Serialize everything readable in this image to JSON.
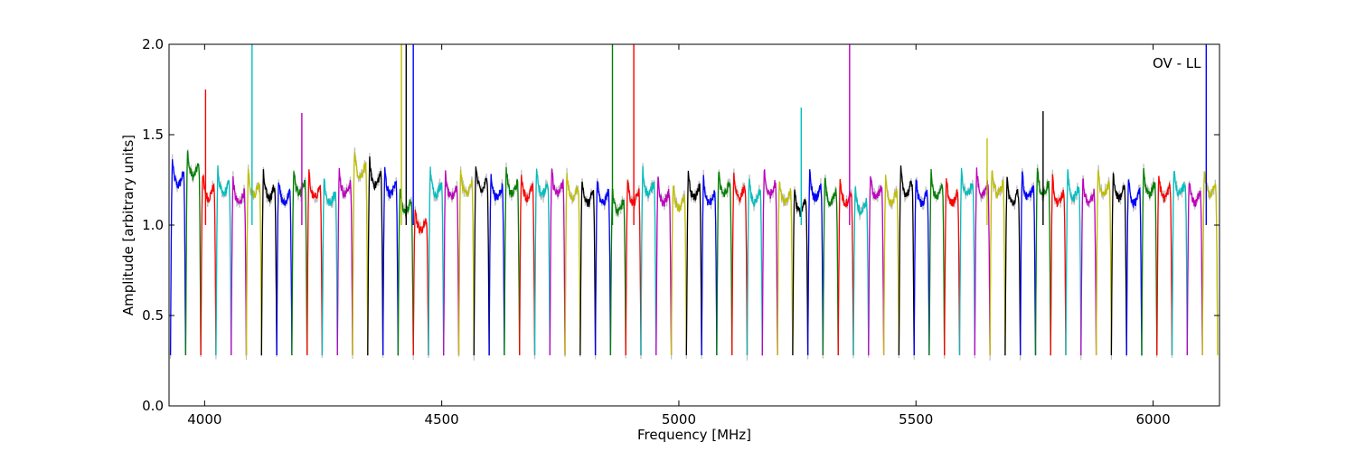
{
  "chart_data": {
    "type": "line",
    "title": "",
    "xlabel": "Frequency [MHz]",
    "ylabel": "Amplitude [arbitrary units]",
    "xlim": [
      3925,
      6140
    ],
    "ylim": [
      0.0,
      2.0
    ],
    "grid": false,
    "annotation": "OV - LL",
    "x_ticks": [
      {
        "value": 4000,
        "label": "4000"
      },
      {
        "value": 4500,
        "label": "4500"
      },
      {
        "value": 5000,
        "label": "5000"
      },
      {
        "value": 5500,
        "label": "5500"
      },
      {
        "value": 6000,
        "label": "6000"
      }
    ],
    "y_ticks": [
      {
        "value": 0.0,
        "label": "0.0"
      },
      {
        "value": 0.5,
        "label": "0.5"
      },
      {
        "value": 1.0,
        "label": "1.0"
      },
      {
        "value": 1.5,
        "label": "1.5"
      },
      {
        "value": 2.0,
        "label": "2.0"
      }
    ],
    "colors": [
      "#0000ff",
      "#008000",
      "#ff0000",
      "#00bfbf",
      "#bf00bf",
      "#bfbf00",
      "#000000"
    ],
    "background_color": "#c0c0c0",
    "band_width_mhz": 32,
    "band_starts": [
      3928,
      3960,
      3992,
      4024,
      4056,
      4088,
      4120,
      4152,
      4184,
      4216,
      4248,
      4280,
      4312,
      4344,
      4376,
      4408,
      4440,
      4472,
      4504,
      4536,
      4568,
      4600,
      4632,
      4664,
      4696,
      4728,
      4760,
      4792,
      4824,
      4856,
      4888,
      4920,
      4952,
      4984,
      5016,
      5048,
      5080,
      5112,
      5144,
      5176,
      5208,
      5240,
      5272,
      5304,
      5336,
      5368,
      5400,
      5432,
      5464,
      5496,
      5528,
      5560,
      5592,
      5624,
      5656,
      5688,
      5720,
      5752,
      5784,
      5816,
      5848,
      5880,
      5912,
      5944,
      5976,
      6008,
      6040,
      6072,
      6104
    ],
    "band_levels": [
      1.25,
      1.3,
      1.18,
      1.2,
      1.15,
      1.2,
      1.18,
      1.15,
      1.2,
      1.18,
      1.15,
      1.2,
      1.3,
      1.25,
      1.2,
      1.1,
      1.0,
      1.2,
      1.18,
      1.2,
      1.22,
      1.18,
      1.2,
      1.18,
      1.2,
      1.2,
      1.18,
      1.15,
      1.15,
      1.1,
      1.15,
      1.2,
      1.15,
      1.12,
      1.18,
      1.15,
      1.2,
      1.18,
      1.15,
      1.2,
      1.15,
      1.1,
      1.18,
      1.15,
      1.15,
      1.1,
      1.18,
      1.15,
      1.2,
      1.15,
      1.18,
      1.15,
      1.2,
      1.2,
      1.2,
      1.15,
      1.18,
      1.2,
      1.15,
      1.18,
      1.15,
      1.2,
      1.18,
      1.15,
      1.2,
      1.18,
      1.2,
      1.15,
      1.2
    ],
    "spikes": [
      {
        "x": 4002,
        "y": 1.75
      },
      {
        "x": 4100,
        "y": 2.0
      },
      {
        "x": 4205,
        "y": 1.62
      },
      {
        "x": 4415,
        "y": 2.0
      },
      {
        "x": 4425,
        "y": 2.0
      },
      {
        "x": 4440,
        "y": 2.0
      },
      {
        "x": 4860,
        "y": 2.0
      },
      {
        "x": 4905,
        "y": 2.0
      },
      {
        "x": 5258,
        "y": 1.65
      },
      {
        "x": 5360,
        "y": 2.0
      },
      {
        "x": 5650,
        "y": 1.48
      },
      {
        "x": 5768,
        "y": 1.63
      },
      {
        "x": 6112,
        "y": 2.0
      }
    ]
  }
}
